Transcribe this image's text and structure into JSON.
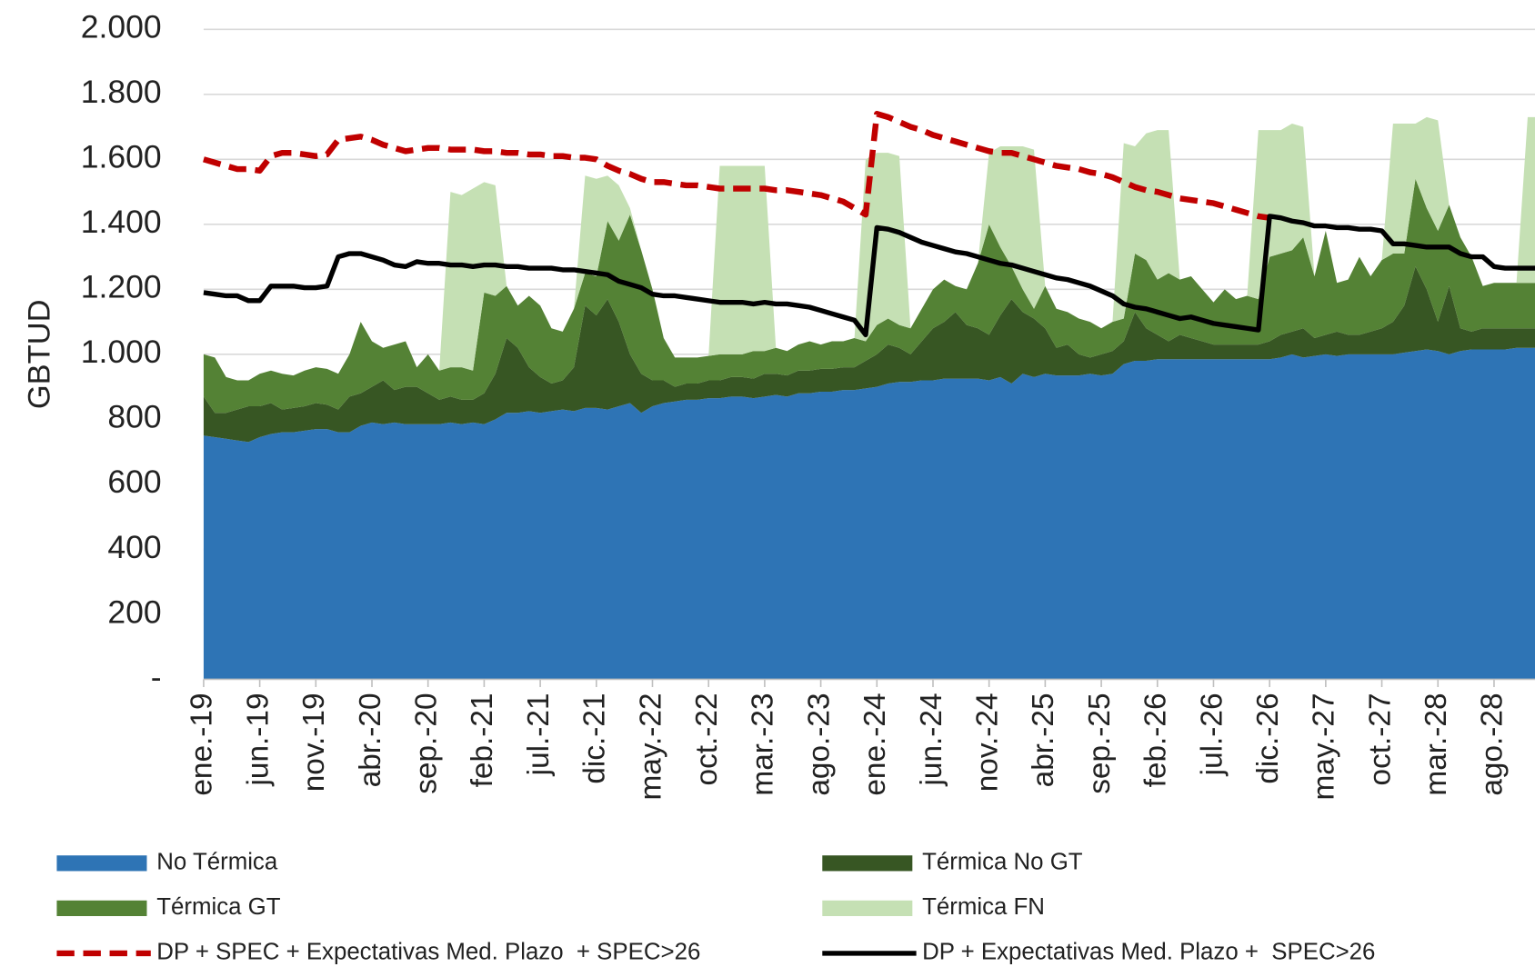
{
  "chart_data": {
    "type": "area",
    "y_label": "GBTUD",
    "ylim": [
      0,
      2000
    ],
    "yticks": [
      {
        "value": 0,
        "label": "-"
      },
      200,
      400,
      600,
      800,
      {
        "value": 1000,
        "label": "1.000"
      },
      {
        "value": 1200,
        "label": "1.200"
      },
      {
        "value": 1400,
        "label": "1.400"
      },
      {
        "value": 1600,
        "label": "1.600"
      },
      {
        "value": 1800,
        "label": "1.800"
      },
      {
        "value": 2000,
        "label": "2.000"
      }
    ],
    "grid": true,
    "categories": [
      "ene.-19",
      null,
      null,
      null,
      null,
      "jun.-19",
      null,
      null,
      null,
      null,
      "nov.-19",
      null,
      null,
      null,
      null,
      "abr.-20",
      null,
      null,
      null,
      null,
      "sep.-20",
      null,
      null,
      null,
      null,
      "feb.-21",
      null,
      null,
      null,
      null,
      "jul.-21",
      null,
      null,
      null,
      null,
      "dic.-21",
      null,
      null,
      null,
      null,
      "may.-22",
      null,
      null,
      null,
      null,
      "oct.-22",
      null,
      null,
      null,
      null,
      "mar.-23",
      null,
      null,
      null,
      null,
      "ago.-23",
      null,
      null,
      null,
      null,
      "ene.-24",
      null,
      null,
      null,
      null,
      "jun.-24",
      null,
      null,
      null,
      null,
      "nov.-24",
      null,
      null,
      null,
      null,
      "abr.-25",
      null,
      null,
      null,
      null,
      "sep.-25",
      null,
      null,
      null,
      null,
      "feb.-26",
      null,
      null,
      null,
      null,
      "jul.-26",
      null,
      null,
      null,
      null,
      "dic.-26",
      null,
      null,
      null,
      null,
      "may.-27",
      null,
      null,
      null,
      null,
      "oct.-27",
      null,
      null,
      null,
      null,
      "mar.-28",
      null,
      null,
      null,
      null,
      "ago.-28",
      null,
      null,
      null,
      null
    ],
    "series": [
      {
        "name": "No Térmica",
        "type": "area",
        "color": "#2E74B5",
        "values": [
          750,
          745,
          740,
          735,
          730,
          745,
          755,
          760,
          760,
          765,
          770,
          770,
          760,
          760,
          780,
          790,
          785,
          790,
          785,
          785,
          785,
          785,
          790,
          785,
          790,
          785,
          800,
          820,
          820,
          825,
          820,
          825,
          830,
          825,
          835,
          835,
          830,
          840,
          850,
          820,
          840,
          850,
          855,
          860,
          860,
          865,
          865,
          870,
          870,
          865,
          870,
          875,
          870,
          880,
          880,
          885,
          885,
          890,
          890,
          895,
          900,
          910,
          915,
          915,
          920,
          920,
          925,
          925,
          925,
          925,
          920,
          930,
          910,
          940,
          930,
          940,
          935,
          935,
          935,
          940,
          935,
          940,
          970,
          980,
          980,
          985,
          985,
          985,
          985,
          985,
          985,
          985,
          985,
          985,
          985,
          985,
          990,
          1000,
          990,
          995,
          1000,
          995,
          1000,
          1000,
          1000,
          1000,
          1000,
          1005,
          1010,
          1015,
          1010,
          1000,
          1010,
          1015,
          1015,
          1015,
          1015,
          1020,
          1020,
          1020
        ]
      },
      {
        "name": "Térmica No GT",
        "type": "area",
        "color": "#375623",
        "values": [
          120,
          75,
          80,
          95,
          110,
          95,
          95,
          70,
          75,
          75,
          80,
          75,
          70,
          110,
          100,
          110,
          135,
          100,
          115,
          115,
          95,
          75,
          80,
          75,
          70,
          95,
          140,
          230,
          200,
          135,
          110,
          85,
          90,
          135,
          315,
          285,
          340,
          260,
          150,
          120,
          80,
          70,
          45,
          50,
          50,
          55,
          55,
          60,
          60,
          60,
          70,
          65,
          65,
          70,
          70,
          70,
          70,
          70,
          70,
          85,
          100,
          120,
          105,
          85,
          120,
          160,
          175,
          205,
          165,
          155,
          140,
          190,
          260,
          190,
          180,
          140,
          85,
          95,
          65,
          50,
          65,
          70,
          70,
          150,
          100,
          75,
          55,
          75,
          65,
          55,
          45,
          45,
          45,
          45,
          45,
          55,
          70,
          70,
          90,
          55,
          60,
          75,
          60,
          60,
          70,
          80,
          100,
          145,
          260,
          185,
          90,
          210,
          70,
          55,
          65,
          65,
          65,
          60,
          60,
          60
        ]
      },
      {
        "name": "Térmica GT",
        "type": "area",
        "color": "#548235",
        "values": [
          130,
          170,
          110,
          90,
          80,
          100,
          100,
          110,
          100,
          110,
          110,
          110,
          110,
          130,
          220,
          140,
          100,
          140,
          140,
          60,
          120,
          90,
          90,
          100,
          90,
          310,
          240,
          160,
          130,
          220,
          220,
          170,
          150,
          180,
          100,
          120,
          240,
          250,
          430,
          380,
          280,
          130,
          90,
          80,
          80,
          75,
          80,
          70,
          70,
          85,
          70,
          80,
          75,
          80,
          90,
          75,
          85,
          80,
          90,
          60,
          90,
          80,
          70,
          80,
          100,
          120,
          130,
          80,
          110,
          200,
          340,
          210,
          100,
          70,
          30,
          130,
          120,
          100,
          110,
          110,
          80,
          90,
          70,
          180,
          210,
          170,
          210,
          170,
          190,
          160,
          130,
          170,
          140,
          150,
          140,
          260,
          250,
          250,
          280,
          190,
          320,
          150,
          170,
          240,
          170,
          210,
          210,
          160,
          270,
          250,
          280,
          250,
          280,
          230,
          130,
          140,
          140,
          140,
          140,
          140
        ]
      },
      {
        "name": "Térmica FN",
        "type": "area",
        "color": "#C5E0B4",
        "values": [
          0,
          0,
          0,
          0,
          0,
          0,
          0,
          0,
          0,
          0,
          0,
          0,
          0,
          0,
          0,
          0,
          0,
          0,
          0,
          0,
          0,
          0,
          540,
          530,
          560,
          340,
          340,
          0,
          0,
          0,
          0,
          0,
          0,
          0,
          300,
          300,
          140,
          170,
          20,
          0,
          0,
          0,
          0,
          0,
          0,
          0,
          580,
          580,
          580,
          570,
          570,
          0,
          0,
          0,
          0,
          0,
          0,
          0,
          0,
          560,
          530,
          510,
          520,
          0,
          0,
          0,
          0,
          0,
          0,
          0,
          220,
          310,
          370,
          440,
          490,
          0,
          0,
          0,
          0,
          0,
          0,
          0,
          540,
          330,
          390,
          460,
          440,
          0,
          0,
          0,
          0,
          0,
          0,
          0,
          520,
          390,
          380,
          390,
          340,
          0,
          0,
          0,
          0,
          0,
          0,
          0,
          400,
          400,
          170,
          280,
          340,
          0,
          0,
          0,
          0,
          0,
          0,
          0,
          510,
          510
        ]
      },
      {
        "name": "DP + SPEC + Expectativas Med. Plazo  + SPEC>26",
        "type": "line",
        "line_style": "dashed",
        "color": "#C00000",
        "values": [
          1600,
          1590,
          1580,
          1570,
          1570,
          1565,
          1610,
          1620,
          1620,
          1615,
          1610,
          1615,
          1660,
          1665,
          1670,
          1660,
          1645,
          1635,
          1625,
          1630,
          1635,
          1635,
          1630,
          1630,
          1630,
          1625,
          1625,
          1620,
          1620,
          1615,
          1615,
          1610,
          1610,
          1605,
          1605,
          1600,
          1580,
          1565,
          1555,
          1540,
          1530,
          1530,
          1525,
          1520,
          1520,
          1515,
          1510,
          1510,
          1510,
          1510,
          1510,
          1505,
          1505,
          1500,
          1495,
          1490,
          1480,
          1470,
          1450,
          1430,
          1740,
          1730,
          1715,
          1700,
          1690,
          1675,
          1665,
          1655,
          1645,
          1635,
          1625,
          1620,
          1620,
          1610,
          1600,
          1590,
          1580,
          1575,
          1570,
          1560,
          1555,
          1545,
          1530,
          1515,
          1505,
          1500,
          1490,
          1480,
          1475,
          1470,
          1465,
          1455,
          1445,
          1435,
          1425,
          1420,
          null,
          null,
          null,
          null,
          null,
          null,
          null,
          null,
          null,
          null,
          null,
          null,
          null,
          null,
          null,
          null,
          null,
          null,
          null,
          null,
          null,
          null,
          null,
          null
        ]
      },
      {
        "name": "DP + Expectativas Med. Plazo +  SPEC>26",
        "type": "line",
        "line_style": "solid",
        "color": "#000000",
        "values": [
          1190,
          1185,
          1180,
          1180,
          1165,
          1165,
          1210,
          1210,
          1210,
          1205,
          1205,
          1210,
          1300,
          1310,
          1310,
          1300,
          1290,
          1275,
          1270,
          1285,
          1280,
          1280,
          1275,
          1275,
          1270,
          1275,
          1275,
          1270,
          1270,
          1265,
          1265,
          1265,
          1260,
          1260,
          1255,
          1250,
          1245,
          1225,
          1215,
          1205,
          1185,
          1180,
          1180,
          1175,
          1170,
          1165,
          1160,
          1160,
          1160,
          1155,
          1160,
          1155,
          1155,
          1150,
          1145,
          1135,
          1125,
          1115,
          1105,
          1060,
          1390,
          1385,
          1375,
          1360,
          1345,
          1335,
          1325,
          1315,
          1310,
          1300,
          1290,
          1280,
          1275,
          1265,
          1255,
          1245,
          1235,
          1230,
          1220,
          1210,
          1195,
          1180,
          1155,
          1145,
          1140,
          1130,
          1120,
          1110,
          1115,
          1105,
          1095,
          1090,
          1085,
          1080,
          1075,
          1425,
          1420,
          1410,
          1405,
          1395,
          1395,
          1390,
          1390,
          1385,
          1385,
          1380,
          1340,
          1340,
          1335,
          1330,
          1330,
          1330,
          1310,
          1300,
          1300,
          1270,
          1265,
          1265,
          1265,
          1265
        ]
      }
    ]
  }
}
